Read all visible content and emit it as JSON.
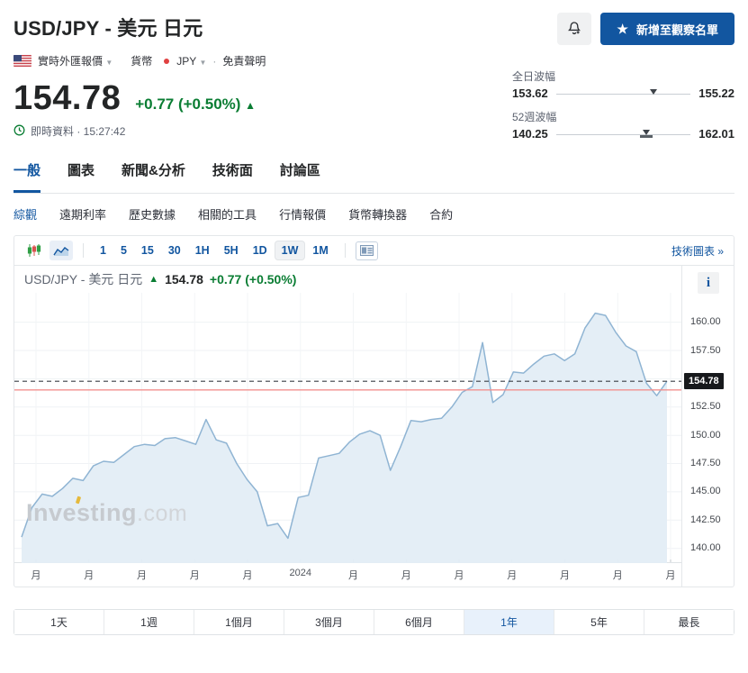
{
  "header": {
    "title": "USD/JPY - 美元 日元",
    "watchlist_button": "新增至觀察名單",
    "star_icon": "★",
    "meta": {
      "quote_type": "實時外匯報價",
      "category_label": "貨幣",
      "currency": "JPY",
      "dot": "·",
      "disclaimer": "免責聲明"
    }
  },
  "quote": {
    "price": "154.78",
    "change": "+0.77 (+0.50%)",
    "arrow": "▲",
    "time_label": "即時資料 · 15:27:42"
  },
  "ranges": {
    "day": {
      "label": "全日波幅",
      "low": "153.62",
      "high": "155.22",
      "pos_pct": 72.5
    },
    "week52": {
      "label": "52週波幅",
      "low": "140.25",
      "high": "162.01",
      "pos_pct": 66.8
    }
  },
  "tabs": {
    "main": [
      {
        "label": "一般",
        "active": true
      },
      {
        "label": "圖表",
        "active": false
      },
      {
        "label": "新聞&分析",
        "active": false
      },
      {
        "label": "技術面",
        "active": false
      },
      {
        "label": "討論區",
        "active": false
      }
    ],
    "sub": [
      {
        "label": "綜觀",
        "active": true
      },
      {
        "label": "遠期利率",
        "active": false
      },
      {
        "label": "歷史數據",
        "active": false
      },
      {
        "label": "相關的工具",
        "active": false
      },
      {
        "label": "行情報價",
        "active": false
      },
      {
        "label": "貨幣轉換器",
        "active": false
      },
      {
        "label": "合約",
        "active": false
      }
    ]
  },
  "chart_toolbar": {
    "intervals": [
      "1",
      "5",
      "15",
      "30",
      "1H",
      "5H",
      "1D",
      "1W",
      "1M"
    ],
    "active_interval": "1W",
    "tech_chart_link": "技術圖表 »"
  },
  "chart_header": {
    "symbol": "USD/JPY - 美元 日元",
    "arrow": "▲",
    "price": "154.78",
    "change": "+0.77 (+0.50%)"
  },
  "watermark": {
    "bold": "Investing",
    "light": ".com"
  },
  "chart_data": {
    "type": "area",
    "title": "USD/JPY 1-year weekly price",
    "x_tick_labels": [
      "月",
      "月",
      "月",
      "月",
      "月",
      "2024",
      "月",
      "月",
      "月",
      "月",
      "月",
      "月",
      "月"
    ],
    "y_tick_labels": [
      "160.00",
      "157.50",
      "155.00",
      "152.50",
      "150.00",
      "147.50",
      "145.00",
      "142.50",
      "140.00"
    ],
    "ylim": [
      138.7,
      162.6
    ],
    "values": [
      141.0,
      143.6,
      144.8,
      144.6,
      145.3,
      146.2,
      146.0,
      147.3,
      147.7,
      147.6,
      148.3,
      149.0,
      149.2,
      149.1,
      149.7,
      149.8,
      149.5,
      149.2,
      151.4,
      149.6,
      149.3,
      147.5,
      146.1,
      145.0,
      142.0,
      142.2,
      140.9,
      144.5,
      144.7,
      148.0,
      148.2,
      148.4,
      149.4,
      150.1,
      150.4,
      150.0,
      146.9,
      149.0,
      151.3,
      151.2,
      151.4,
      151.5,
      152.5,
      153.8,
      154.3,
      158.2,
      152.9,
      153.6,
      155.6,
      155.5,
      156.3,
      157.0,
      157.2,
      156.6,
      157.2,
      159.5,
      160.8,
      160.6,
      159.1,
      157.9,
      157.4,
      154.6,
      153.5,
      154.78
    ],
    "last_price": 154.78,
    "last_price_label": "154.78",
    "prev_close": 154.01,
    "grid": true,
    "line_color": "#8fb4d3",
    "fill_color": "#e3edf6",
    "prev_close_line_color": "#f2918f",
    "last_price_line_color": "#3a3f45"
  },
  "periods": [
    {
      "label": "1天",
      "active": false
    },
    {
      "label": "1週",
      "active": false
    },
    {
      "label": "1個月",
      "active": false
    },
    {
      "label": "3個月",
      "active": false
    },
    {
      "label": "6個月",
      "active": false
    },
    {
      "label": "1年",
      "active": true
    },
    {
      "label": "5年",
      "active": false
    },
    {
      "label": "最長",
      "active": false
    }
  ]
}
